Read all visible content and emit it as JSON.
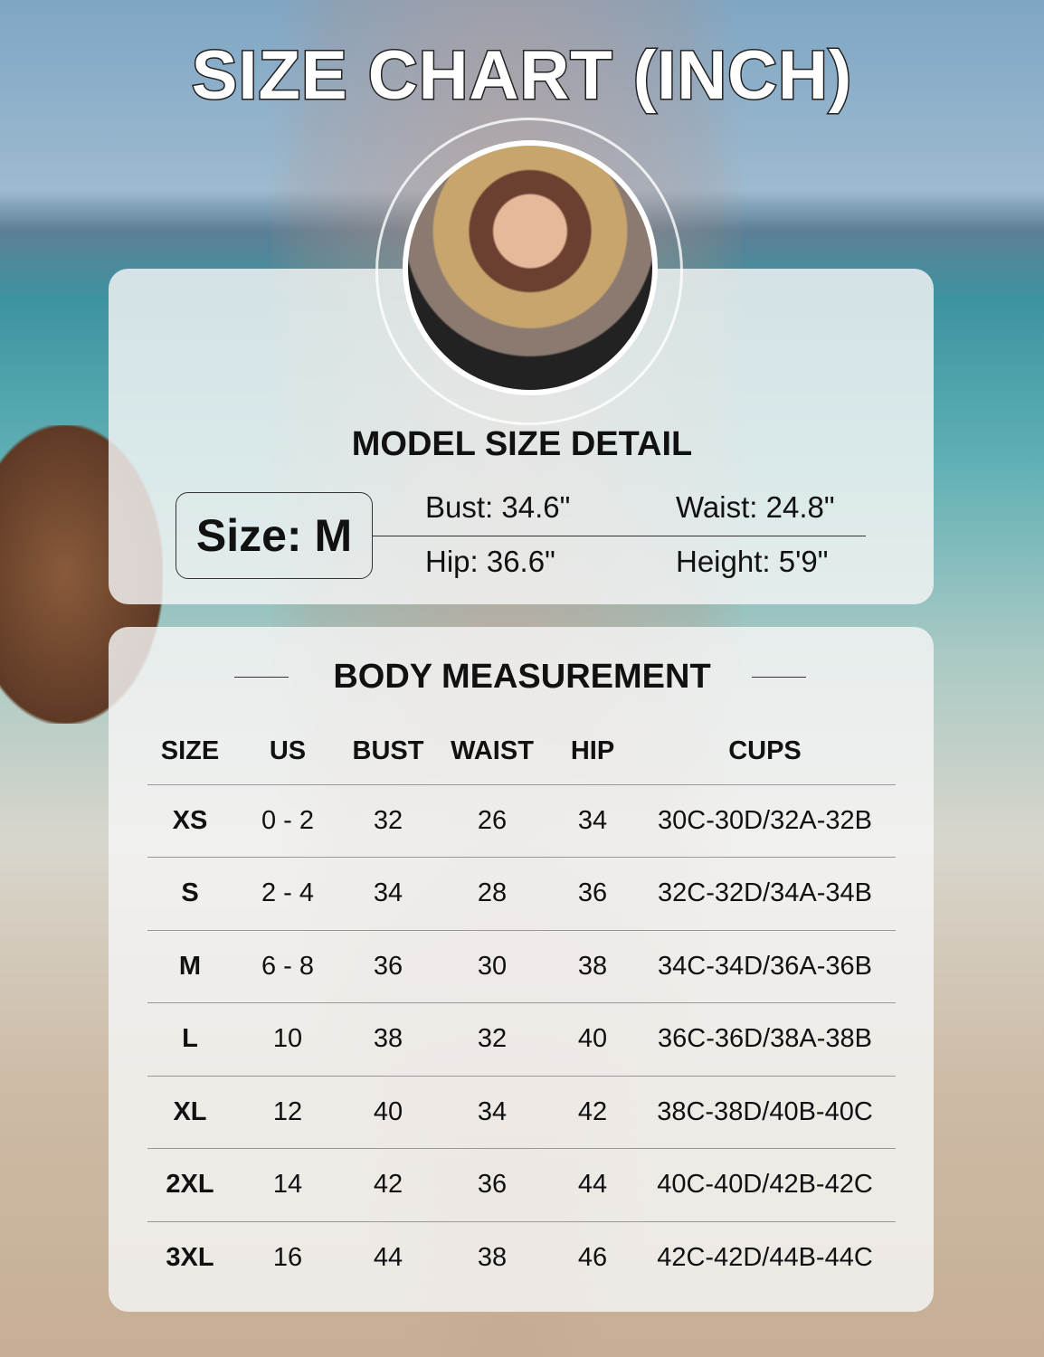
{
  "title": "SIZE CHART (INCH)",
  "model": {
    "heading": "MODEL SIZE DETAIL",
    "size": "Size: M",
    "bust": "Bust: 34.6\"",
    "waist": "Waist: 24.8\"",
    "hip": "Hip: 36.6\"",
    "height": "Height: 5'9\""
  },
  "body": {
    "heading": "BODY MEASUREMENT",
    "columns": [
      "SIZE",
      "US",
      "BUST",
      "WAIST",
      "HIP",
      "CUPS"
    ],
    "rows": [
      [
        "XS",
        "0 - 2",
        "32",
        "26",
        "34",
        "30C-30D/32A-32B"
      ],
      [
        "S",
        "2 - 4",
        "34",
        "28",
        "36",
        "32C-32D/34A-34B"
      ],
      [
        "M",
        "6 - 8",
        "36",
        "30",
        "38",
        "34C-34D/36A-36B"
      ],
      [
        "L",
        "10",
        "38",
        "32",
        "40",
        "36C-36D/38A-38B"
      ],
      [
        "XL",
        "12",
        "40",
        "34",
        "42",
        "38C-38D/40B-40C"
      ],
      [
        "2XL",
        "14",
        "42",
        "36",
        "44",
        "40C-40D/42B-42C"
      ],
      [
        "3XL",
        "16",
        "44",
        "38",
        "46",
        "42C-42D/44B-44C"
      ]
    ]
  }
}
